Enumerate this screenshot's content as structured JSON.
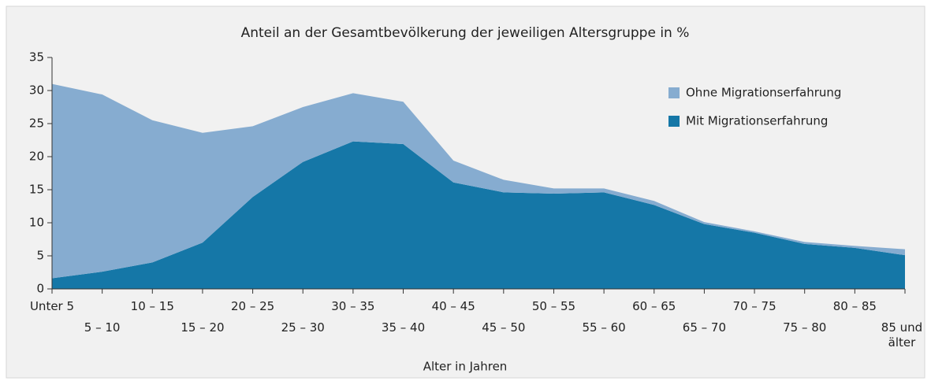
{
  "chart_data": {
    "type": "stacked-area",
    "title": "Anteil an der Gesamtbevölkerung der jeweiligen Altersgruppe in %",
    "x_label": "Alter in Jahren",
    "categories": [
      "Unter 5",
      "5 – 10",
      "10 – 15",
      "15 – 20",
      "20 – 25",
      "25 – 30",
      "30 – 35",
      "35 – 40",
      "40 – 45",
      "45 – 50",
      "50 – 55",
      "55 – 60",
      "60 – 65",
      "65 – 70",
      "70 – 75",
      "75 – 80",
      "80 – 85",
      "85 und älter"
    ],
    "series": [
      {
        "name": "Mit Migrationserfahrung",
        "color": "#1577a7",
        "values": [
          1.6,
          2.6,
          4.0,
          7.0,
          13.9,
          19.2,
          22.3,
          21.9,
          16.1,
          14.6,
          14.4,
          14.6,
          12.7,
          9.8,
          8.5,
          6.8,
          6.2,
          5.1
        ]
      },
      {
        "name": "Ohne Migrationserfahrung",
        "color": "#86acd0",
        "values": [
          29.4,
          26.8,
          21.5,
          16.6,
          10.7,
          8.3,
          7.3,
          6.4,
          3.3,
          1.9,
          0.8,
          0.6,
          0.6,
          0.3,
          0.2,
          0.3,
          0.3,
          0.9
        ]
      }
    ],
    "ylim": [
      0,
      35
    ],
    "yticks": [
      0,
      5,
      10,
      15,
      20,
      25,
      30,
      35
    ],
    "legend": "top-right"
  }
}
